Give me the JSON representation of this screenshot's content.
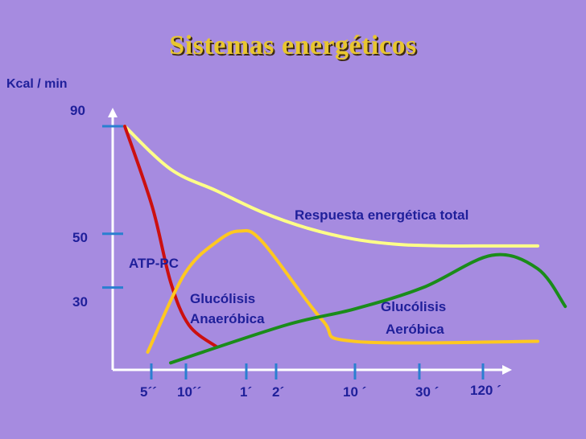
{
  "title": "Sistemas energéticos",
  "chart_data": {
    "type": "line",
    "ylabel": "Kcal / min",
    "yticks": [
      {
        "label": "90",
        "value": 90
      },
      {
        "label": "50",
        "value": 50
      },
      {
        "label": "30",
        "value": 30
      }
    ],
    "xticks": [
      "5´´",
      "10´´",
      "1´",
      "2´",
      "10 ´",
      "30 ´",
      "120 ´"
    ],
    "annotations": {
      "total": "Respuesta energética total",
      "atp": "ATP-PC",
      "glyco_anaer_1": "Glucólisis",
      "glyco_anaer_2": "Anaeróbica",
      "glyco_aer_1": "Glucólisis",
      "glyco_aer_2": "Aeróbica"
    },
    "series": [
      {
        "name": "Respuesta energética total",
        "color": "#ffff88",
        "points": [
          [
            0,
            90
          ],
          [
            1,
            74
          ],
          [
            2,
            66
          ],
          [
            3,
            58
          ],
          [
            4,
            52
          ],
          [
            5,
            48
          ],
          [
            6,
            46
          ],
          [
            7,
            45.5
          ],
          [
            8,
            45.5
          ],
          [
            9,
            45.5
          ]
        ]
      },
      {
        "name": "ATP-PC",
        "color": "#cc1010",
        "points": [
          [
            0,
            90
          ],
          [
            0.6,
            60
          ],
          [
            1,
            32
          ],
          [
            1.4,
            16
          ],
          [
            2,
            8
          ]
        ]
      },
      {
        "name": "Glucólisis Anaeróbica",
        "color": "#ffc820",
        "points": [
          [
            0.5,
            6
          ],
          [
            1.3,
            35
          ],
          [
            2,
            47
          ],
          [
            2.5,
            51
          ],
          [
            3,
            47
          ],
          [
            4.3,
            18
          ],
          [
            5,
            10
          ],
          [
            9,
            10
          ]
        ]
      },
      {
        "name": "Glucólisis Aeróbica",
        "color": "#1a8c1a",
        "points": [
          [
            1,
            2
          ],
          [
            3.5,
            16
          ],
          [
            5,
            22
          ],
          [
            6.5,
            30
          ],
          [
            8,
            42
          ],
          [
            9,
            37
          ],
          [
            9.6,
            23
          ]
        ]
      }
    ]
  }
}
